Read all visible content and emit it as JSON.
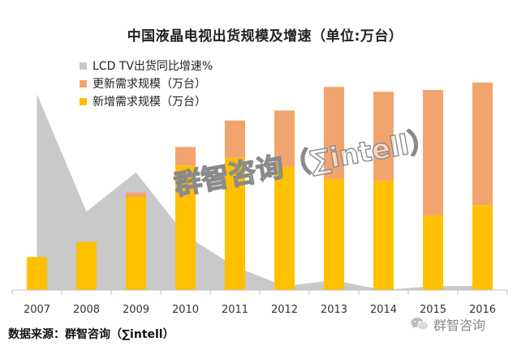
{
  "chart_data": {
    "type": "bar",
    "title": "中国液晶电视出货规模及增速（单位:万台）",
    "categories": [
      "2007",
      "2008",
      "2009",
      "2010",
      "2011",
      "2012",
      "2013",
      "2014",
      "2015",
      "2016"
    ],
    "series": [
      {
        "name": "新增需求规模（万台）",
        "color": "#FFC000",
        "stacked": true,
        "values": [
          1750,
          2550,
          4930,
          6600,
          7000,
          6530,
          5880,
          5800,
          3950,
          4500
        ]
      },
      {
        "name": "更新需求规模（万台）",
        "color": "#F2A46E",
        "stacked": true,
        "values": [
          0,
          0,
          230,
          980,
          1980,
          2980,
          4880,
          4700,
          6650,
          6490
        ]
      },
      {
        "name": "LCD TV出货同比增速%",
        "color": "#C9C9C9",
        "type": "area",
        "values": [
          100,
          40,
          60,
          28,
          12,
          2,
          5,
          0,
          2,
          2
        ]
      }
    ],
    "legend": {
      "placement": "top-left"
    },
    "grid": false,
    "xlabel": "",
    "ylabel": ""
  },
  "watermark": "群智咨询（∑intell）",
  "source": "数据来源：群智咨询（∑intell）",
  "brand": {
    "text": "群智咨询",
    "icon": "wechat-icon"
  }
}
